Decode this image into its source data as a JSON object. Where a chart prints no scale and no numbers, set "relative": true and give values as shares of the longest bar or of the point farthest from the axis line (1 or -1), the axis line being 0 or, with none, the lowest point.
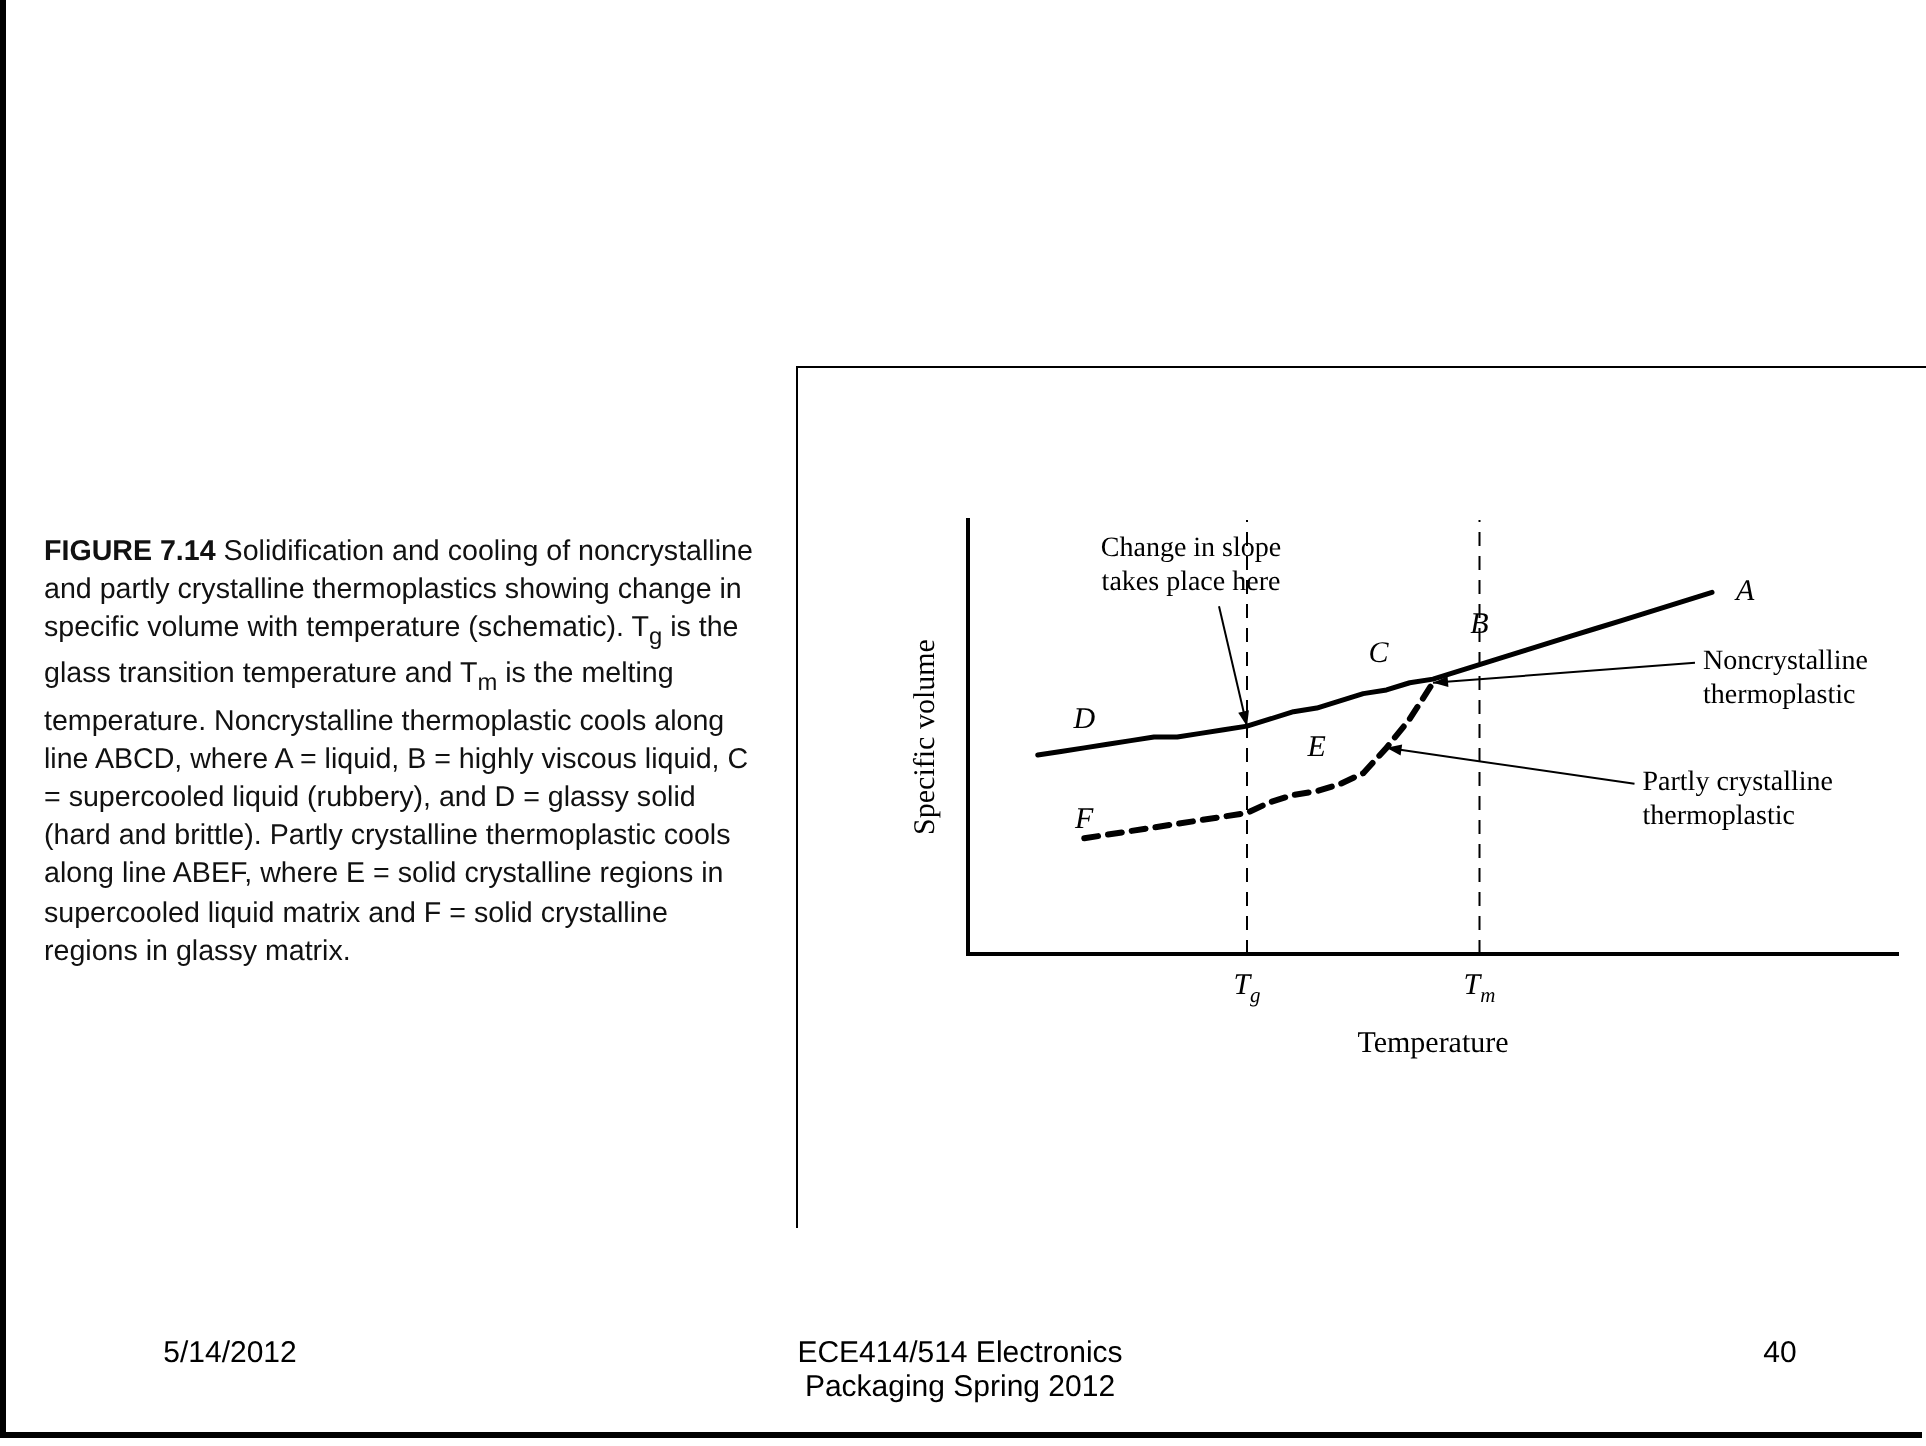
{
  "chart_data": {
    "type": "line",
    "relative": true,
    "xlabel": "Temperature",
    "ylabel": "Specific volume",
    "categories": [
      null,
      null,
      null,
      null,
      null,
      null,
      null,
      null,
      null,
      null,
      null,
      null,
      "T$_{g}$",
      null,
      null,
      null,
      null,
      null,
      null,
      null,
      null,
      null,
      "T$_{m}$",
      null,
      null,
      null,
      null,
      null,
      null,
      null,
      null,
      null,
      null,
      null,
      null,
      null,
      null,
      null,
      null,
      null,
      null
    ],
    "legend": false,
    "grid": false,
    "marker": "none",
    "series": [
      {
        "color": "#000000",
        "line_style": "solid",
        "values": [
          null,
          null,
          null,
          0.55,
          0.56,
          0.57,
          0.58,
          0.59,
          0.6,
          0.6,
          0.61,
          0.62,
          0.63,
          0.65,
          0.67,
          0.68,
          0.7,
          0.72,
          0.73,
          0.75,
          0.76,
          0.78,
          0.8,
          0.82,
          0.84,
          0.86,
          0.88,
          0.9,
          0.92,
          0.94,
          0.96,
          0.98,
          1.0,
          null,
          null,
          null,
          null,
          null,
          null,
          null,
          null
        ]
      },
      {
        "color": "#000000",
        "line_style": "dashed",
        "values": [
          null,
          null,
          null,
          null,
          null,
          0.32,
          0.33,
          0.34,
          0.35,
          0.36,
          0.37,
          0.38,
          0.39,
          0.42,
          0.44,
          0.45,
          0.47,
          0.5,
          0.57,
          0.65,
          0.75,
          null,
          null,
          null,
          null,
          null,
          null,
          null,
          null,
          null,
          null,
          null,
          null,
          null,
          null,
          null,
          null,
          null,
          null,
          null,
          null
        ]
      }
    ],
    "ref_lines": [
      {
        "axis": "x",
        "value": "T$_{g}$",
        "line_style": "dashed",
        "color": "#000000"
      },
      {
        "axis": "x",
        "value": "T$_{m}$",
        "line_style": "dashed",
        "color": "#000000"
      }
    ],
    "annotations": [
      "A",
      "B",
      "C",
      "D",
      "E",
      "F",
      "Change in slope\ntakes place here",
      "Noncrystalline\nthermoplastic",
      "Partly crystalline\nthermoplastic",
      "FIGURE 7.14 Solidification and cooling of noncrystalline and partly crystalline thermoplastics showing change in specific volume with temperature (schematic). T$_{g}$ is the glass transition temperature and T$_{m}$ is the melting temperature. Noncrystalline thermoplastic cools along line ABCD, where A = liquid, B = highly viscous liquid, C = supercooled liquid (rubbery), and D = glassy solid (hard and brittle). Partly crystalline thermoplastic cools along line ABEF, where E = solid crystalline regions in supercooled liquid matrix and F = solid crystalline regions in glassy matrix.",
      "5/14/2012",
      "ECE414/514 Electronics\nPackaging Spring 2012",
      "40"
    ]
  }
}
